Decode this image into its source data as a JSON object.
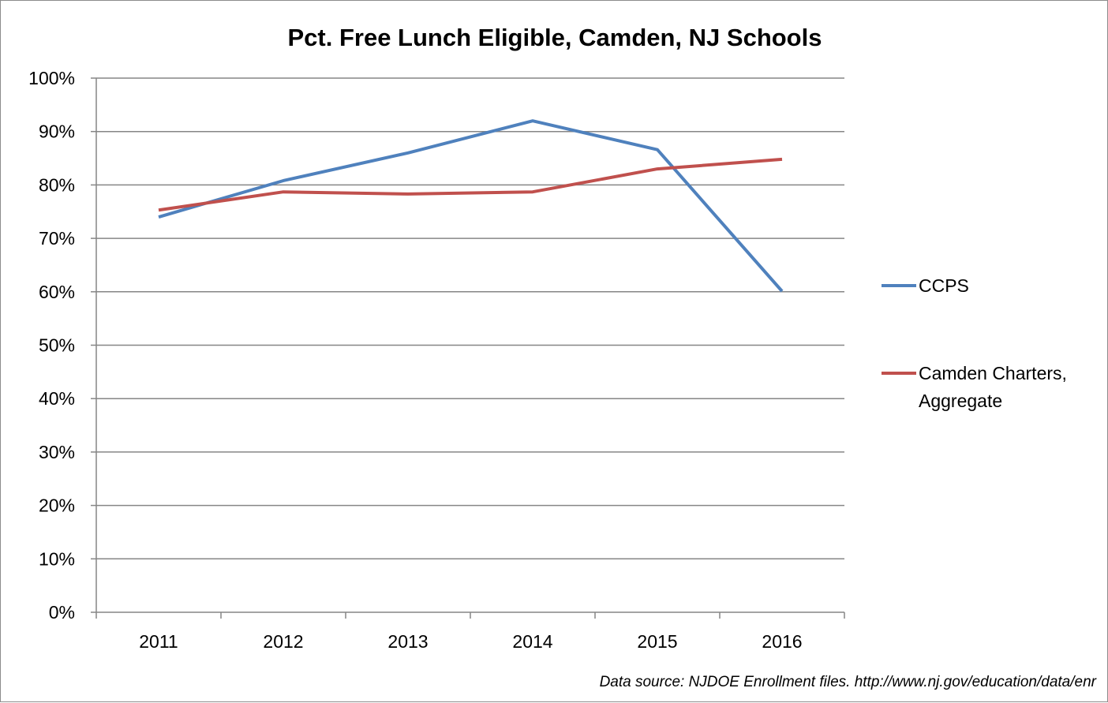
{
  "chart_data": {
    "type": "line",
    "title": "Pct. Free Lunch Eligible, Camden, NJ Schools",
    "xlabel": "",
    "ylabel": "",
    "categories": [
      "2011",
      "2012",
      "2013",
      "2014",
      "2015",
      "2016"
    ],
    "ylim": [
      0,
      1
    ],
    "yticks": [
      "0%",
      "10%",
      "20%",
      "30%",
      "40%",
      "50%",
      "60%",
      "70%",
      "80%",
      "90%",
      "100%"
    ],
    "grid": true,
    "legend_position": "right",
    "series": [
      {
        "name": "CCPS",
        "color": "#4f81bd",
        "values": [
          0.74,
          0.808,
          0.86,
          0.92,
          0.866,
          0.601
        ]
      },
      {
        "name": "Camden Charters, Aggregate",
        "color": "#c0504d",
        "values": [
          0.753,
          0.787,
          0.783,
          0.787,
          0.83,
          0.848
        ]
      }
    ],
    "legend_labels": {
      "ccps": "CCPS",
      "charters_line1": "Camden Charters,",
      "charters_line2": "Aggregate"
    },
    "source_note": "Data source: NJDOE Enrollment files. http://www.nj.gov/education/data/enr"
  }
}
